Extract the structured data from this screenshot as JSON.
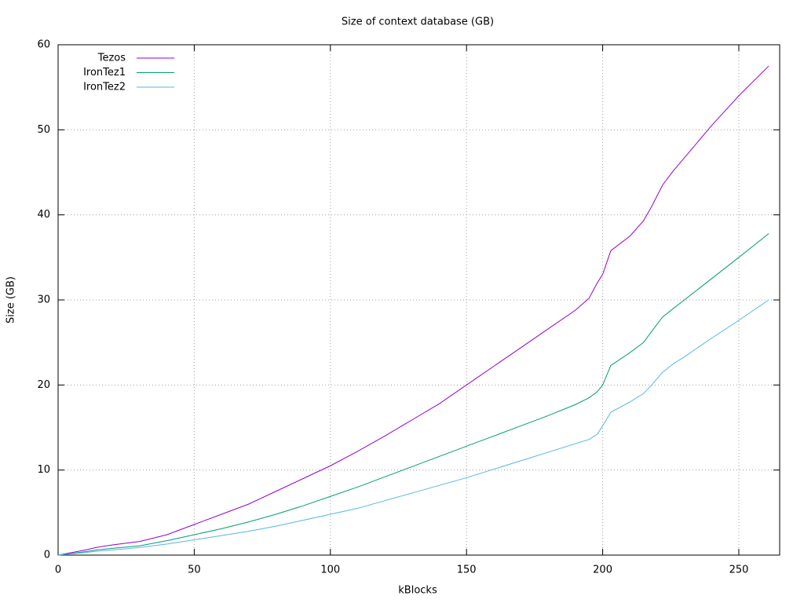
{
  "chart_data": {
    "type": "line",
    "title": "Size of context database (GB)",
    "x_label": "kBlocks",
    "y_label": "Size (GB)",
    "x": [
      0,
      5,
      10,
      14,
      20,
      30,
      40,
      50,
      60,
      70,
      80,
      90,
      100,
      110,
      120,
      130,
      140,
      150,
      160,
      170,
      180,
      190,
      195,
      198,
      200,
      203,
      210,
      215,
      218,
      222,
      226,
      230,
      240,
      250,
      261
    ],
    "series": [
      {
        "name": "Tezos",
        "color": "#9400d3",
        "values": [
          0,
          0.3,
          0.6,
          0.9,
          1.2,
          1.6,
          2.4,
          3.6,
          4.8,
          6.0,
          7.5,
          9.0,
          10.5,
          12.2,
          14.0,
          15.9,
          17.8,
          20.0,
          22.2,
          24.4,
          26.6,
          28.8,
          30.2,
          32.0,
          33.0,
          35.8,
          37.5,
          39.3,
          41.0,
          43.5,
          45.2,
          46.7,
          50.5,
          54.0,
          57.5
        ]
      },
      {
        "name": "IronTez1",
        "color": "#009e73",
        "values": [
          0,
          0.2,
          0.4,
          0.6,
          0.8,
          1.1,
          1.7,
          2.4,
          3.1,
          3.9,
          4.8,
          5.8,
          6.9,
          8.0,
          9.2,
          10.4,
          11.6,
          12.8,
          14.0,
          15.2,
          16.4,
          17.7,
          18.5,
          19.2,
          20.0,
          22.3,
          23.8,
          25.0,
          26.3,
          28.0,
          29.0,
          30.0,
          32.5,
          35.0,
          37.8
        ]
      },
      {
        "name": "IronTez2",
        "color": "#56b4e9",
        "values": [
          0,
          0.15,
          0.3,
          0.45,
          0.6,
          0.9,
          1.3,
          1.8,
          2.3,
          2.8,
          3.4,
          4.1,
          4.8,
          5.5,
          6.4,
          7.3,
          8.2,
          9.1,
          10.1,
          11.1,
          12.1,
          13.1,
          13.6,
          14.2,
          15.2,
          16.8,
          18.0,
          19.0,
          20.0,
          21.5,
          22.5,
          23.3,
          25.5,
          27.6,
          30.0
        ]
      }
    ],
    "xlim": [
      0,
      265
    ],
    "xticks": [
      0,
      50,
      100,
      150,
      200,
      250
    ],
    "ylim": [
      0,
      60
    ],
    "yticks": [
      0,
      10,
      20,
      30,
      40,
      50,
      60
    ],
    "grid": true,
    "legend": "top-left"
  }
}
